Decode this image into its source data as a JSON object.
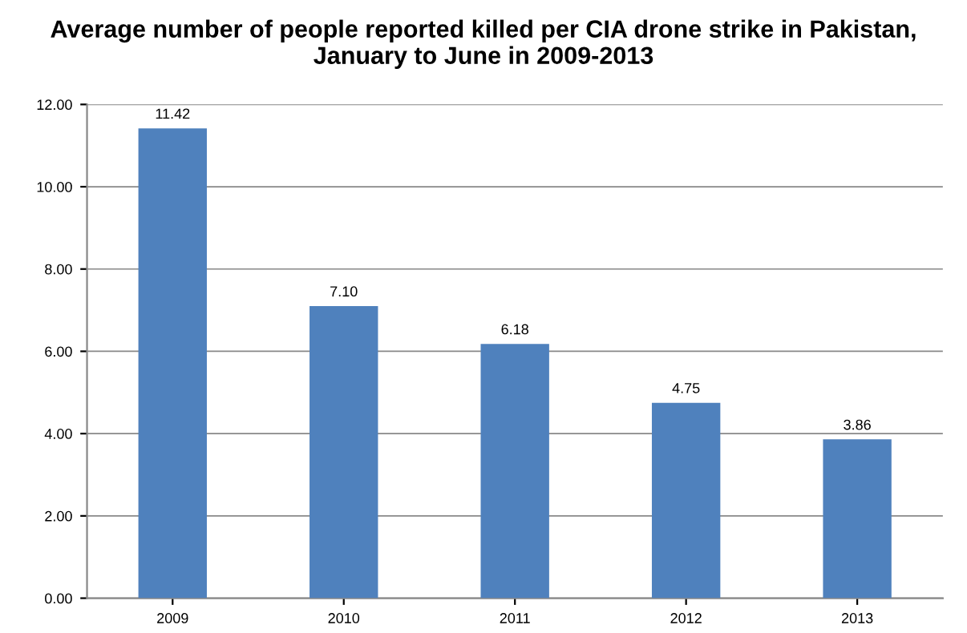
{
  "chart_data": {
    "type": "bar",
    "title": "Average number of people reported killed per CIA drone strike in Pakistan,\nJanuary to June in 2009-2013",
    "categories": [
      "2009",
      "2010",
      "2011",
      "2012",
      "2013"
    ],
    "values": [
      11.42,
      7.1,
      6.18,
      4.75,
      3.86
    ],
    "value_labels": [
      "11.42",
      "7.10",
      "6.18",
      "4.75",
      "3.86"
    ],
    "color": "#4f81bd",
    "ylim": [
      0,
      12
    ],
    "yticks": [
      {
        "value": 0,
        "label": "0.00"
      },
      {
        "value": 2,
        "label": "2.00"
      },
      {
        "value": 4,
        "label": "4.00"
      },
      {
        "value": 6,
        "label": "6.00"
      },
      {
        "value": 8,
        "label": "8.00"
      },
      {
        "value": 10,
        "label": "10.00"
      },
      {
        "value": 12,
        "label": "12.00"
      }
    ],
    "grid": "y"
  }
}
